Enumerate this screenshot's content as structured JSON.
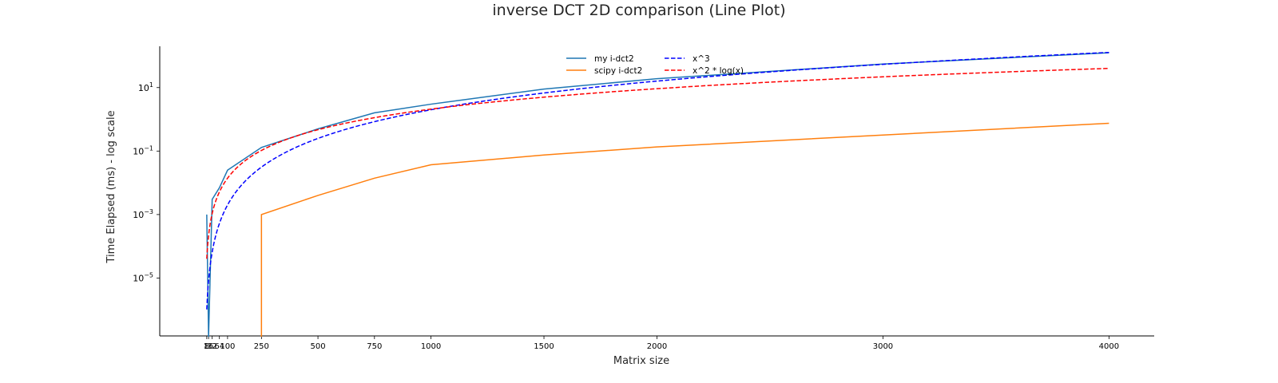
{
  "chart_data": {
    "type": "line",
    "title": "inverse DCT 2D comparison (Line Plot)",
    "xlabel": "Matrix size",
    "ylabel": "Time Elapsed (ms) - log scale",
    "y_scale": "log",
    "xlim": [
      -200,
      4200
    ],
    "ylim": [
      1.5e-07,
      200
    ],
    "x_ticks": [
      {
        "value": 8,
        "label": "8"
      },
      {
        "value": 16,
        "label": "16"
      },
      {
        "value": 32,
        "label": "32"
      },
      {
        "value": 64,
        "label": "64"
      },
      {
        "value": 100,
        "label": "100"
      },
      {
        "value": 250,
        "label": "250"
      },
      {
        "value": 500,
        "label": "500"
      },
      {
        "value": 750,
        "label": "750"
      },
      {
        "value": 1000,
        "label": "1000"
      },
      {
        "value": 1500,
        "label": "1500"
      },
      {
        "value": 2000,
        "label": "2000"
      },
      {
        "value": 3000,
        "label": "3000"
      },
      {
        "value": 4000,
        "label": "4000"
      }
    ],
    "y_ticks": [
      {
        "value": 1e-05,
        "base": "10",
        "exp": "−5"
      },
      {
        "value": 0.001,
        "base": "10",
        "exp": "−3"
      },
      {
        "value": 0.1,
        "base": "10",
        "exp": "−1"
      },
      {
        "value": 10,
        "base": "10",
        "exp": "1"
      }
    ],
    "grid": false,
    "legend_position": "top-center",
    "series": [
      {
        "name": "my i-dct2",
        "color": "#1f77b4",
        "dash": "solid",
        "x": [
          8,
          16,
          32,
          64,
          100,
          250,
          500,
          750,
          1000,
          1500,
          2000,
          3000,
          4000
        ],
        "y": [
          0.001,
          0,
          0.003,
          0.007,
          0.025,
          0.13,
          0.5,
          1.6,
          3.0,
          9.0,
          19.0,
          55.0,
          125.0
        ]
      },
      {
        "name": "scipy i-dct2",
        "color": "#ff7f0e",
        "dash": "solid",
        "x": [
          250,
          250,
          500,
          750,
          1000,
          1500,
          2000,
          3000,
          4000
        ],
        "y": [
          0,
          0.001,
          0.004,
          0.014,
          0.037,
          0.075,
          0.135,
          0.32,
          0.75
        ]
      },
      {
        "name": "x^3",
        "color": "#0000ff",
        "dash": "dashed",
        "fn": "x^3 / 5e8"
      },
      {
        "name": "x^2 * log(x)",
        "color": "#ff0000",
        "dash": "dashed",
        "fn": "x^2 * ln(x) / 3.3e6"
      }
    ]
  }
}
